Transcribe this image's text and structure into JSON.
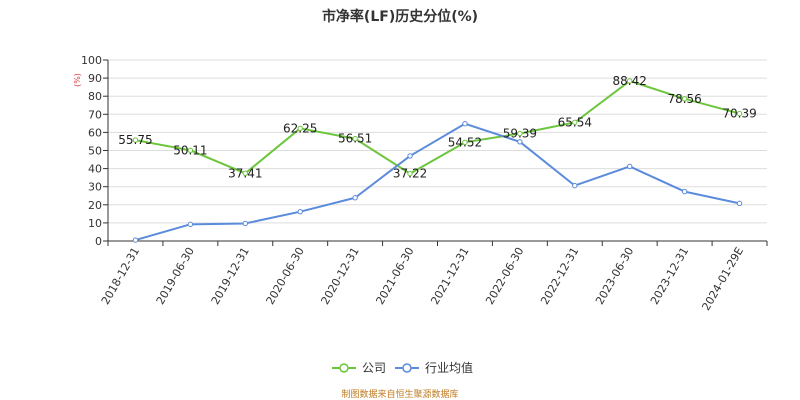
{
  "colors": {
    "company": "#6cc63c",
    "industry": "#5b8bdb",
    "axis": "#333333",
    "grid": "#dddddd",
    "source": "#c07a1f"
  },
  "chart_data": {
    "type": "line",
    "title": "市净率(LF)历史分位(%)",
    "y_unit": "(%)",
    "categories": [
      "2018-12-31",
      "2019-06-30",
      "2019-12-31",
      "2020-06-30",
      "2020-12-31",
      "2021-06-30",
      "2021-12-31",
      "2022-06-30",
      "2022-12-31",
      "2023-06-30",
      "2023-12-31",
      "2024-01-29E"
    ],
    "ylim": [
      0,
      100
    ],
    "yticks": [
      0,
      10,
      20,
      30,
      40,
      50,
      60,
      70,
      80,
      90,
      100
    ],
    "grid": true,
    "legend_position": "bottom",
    "series": [
      {
        "name": "公司",
        "values": [
          55.75,
          50.11,
          37.41,
          62.25,
          56.51,
          37.22,
          54.52,
          59.39,
          65.54,
          88.42,
          78.56,
          70.39
        ],
        "labels": true
      },
      {
        "name": "行业均值",
        "values": [
          0.5,
          9.2,
          9.7,
          16.2,
          23.9,
          47.0,
          64.8,
          54.8,
          30.6,
          41.2,
          27.3,
          20.8
        ],
        "labels": false
      }
    ]
  },
  "source": "制图数据来自恒生聚源数据库"
}
